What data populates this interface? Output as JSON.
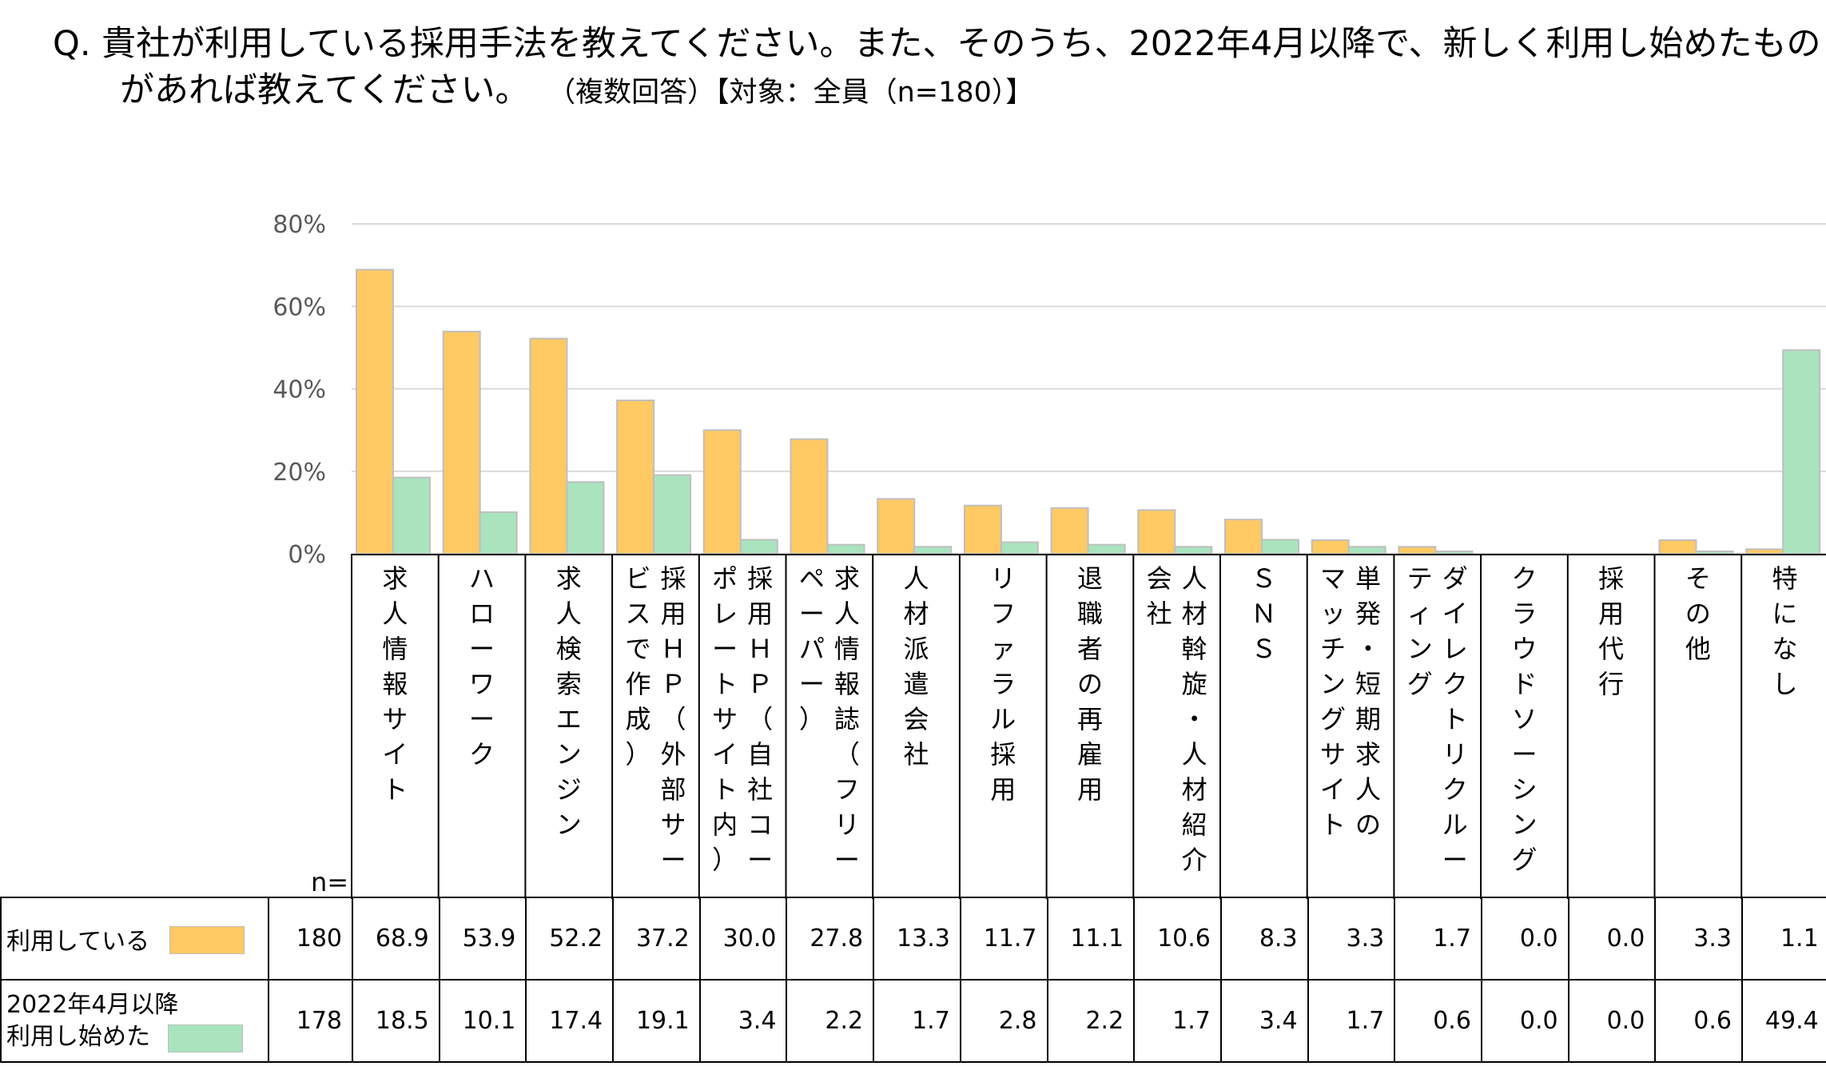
{
  "question": {
    "line1": "Q. 貴社が利用している採用手法を教えてください。また、そのうち、2022年4月以降で、新しく利用し始めたもの",
    "line2": "があれば教えてください。",
    "meta": "（複数回答）【対象：全員（n=180）】"
  },
  "n_label": "n=",
  "colors": {
    "used": "#FFC963",
    "started": "#A9E4BF",
    "bar_border": "#BFBFBF",
    "grid": "#D9D9D9"
  },
  "chart_data": {
    "type": "bar",
    "categories": [
      "求人情報サイト",
      "ハローワーク",
      "求人検索エンジン",
      "採用HP（外部サービスで作成）",
      "採用HP（自社コーポレートサイト内）",
      "求人情報誌（フリーペーパー）",
      "人材派遣会社",
      "リファラル採用",
      "退職者の再雇用",
      "人材斡旋・人材紹介会社",
      "SNS",
      "単発・短期求人のマッチングサイト",
      "ダイレクトリクルーティング",
      "クラウドソーシング",
      "採用代行",
      "その他",
      "特になし"
    ],
    "category_label_columns": [
      [
        "求人情報サイト"
      ],
      [
        "ハローワーク"
      ],
      [
        "求人検索エンジン"
      ],
      [
        "採用ＨＰ（外部サー",
        "ビスで作成）"
      ],
      [
        "採用ＨＰ（自社コー",
        "ポレートサイト内）"
      ],
      [
        "求人情報誌（フリー",
        "ペーパー）"
      ],
      [
        "人材派遣会社"
      ],
      [
        "リファラル採用"
      ],
      [
        "退職者の再雇用"
      ],
      [
        "人材斡旋・人材紹介",
        "会社"
      ],
      [
        "ＳＮＳ"
      ],
      [
        "単発・短期求人の",
        "マッチングサイト"
      ],
      [
        "ダイレクトリクルー",
        "ティング"
      ],
      [
        "クラウドソーシング"
      ],
      [
        "採用代行"
      ],
      [
        "その他"
      ],
      [
        "特になし"
      ]
    ],
    "series": [
      {
        "name": "利用している",
        "n": "180",
        "values": [
          68.9,
          53.9,
          52.2,
          37.2,
          30.0,
          27.8,
          13.3,
          11.7,
          11.1,
          10.6,
          8.3,
          3.3,
          1.7,
          0.0,
          0.0,
          3.3,
          1.1
        ],
        "labels": [
          "68.9",
          "53.9",
          "52.2",
          "37.2",
          "30.0",
          "27.8",
          "13.3",
          "11.7",
          "11.1",
          "10.6",
          "8.3",
          "3.3",
          "1.7",
          "0.0",
          "0.0",
          "3.3",
          "1.1"
        ]
      },
      {
        "name": "2022年4月以降利用し始めた",
        "label_lines": [
          "2022年4月以降",
          "利用し始めた"
        ],
        "n": "178",
        "values": [
          18.5,
          10.1,
          17.4,
          19.1,
          3.4,
          2.2,
          1.7,
          2.8,
          2.2,
          1.7,
          3.4,
          1.7,
          0.6,
          0.0,
          0.0,
          0.6,
          49.4
        ],
        "labels": [
          "18.5",
          "10.1",
          "17.4",
          "19.1",
          "3.4",
          "2.2",
          "1.7",
          "2.8",
          "2.2",
          "1.7",
          "3.4",
          "1.7",
          "0.6",
          "0.0",
          "0.0",
          "0.6",
          "49.4"
        ]
      }
    ],
    "yticks": [
      0,
      20,
      40,
      60,
      80
    ],
    "ytick_labels": [
      "0%",
      "20%",
      "40%",
      "60%",
      "80%"
    ],
    "ylim": [
      0,
      80
    ],
    "grid": true
  }
}
